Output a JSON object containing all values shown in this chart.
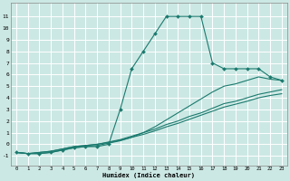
{
  "xlabel": "Humidex (Indice chaleur)",
  "bg_color": "#cce8e4",
  "grid_color": "#ffffff",
  "line_color": "#1a7a6e",
  "xlim": [
    -0.5,
    23.5
  ],
  "ylim": [
    -1.8,
    12.2
  ],
  "xticks": [
    0,
    1,
    2,
    3,
    4,
    5,
    6,
    7,
    8,
    9,
    10,
    11,
    12,
    13,
    14,
    15,
    16,
    17,
    18,
    19,
    20,
    21,
    22,
    23
  ],
  "yticks": [
    -1,
    0,
    1,
    2,
    3,
    4,
    5,
    6,
    7,
    8,
    9,
    10,
    11
  ],
  "line_main_x": [
    0,
    1,
    2,
    3,
    4,
    5,
    6,
    7,
    8,
    9,
    10,
    11,
    12,
    13,
    14,
    15,
    16,
    17,
    18,
    19,
    20,
    21,
    22,
    23
  ],
  "line_main_y": [
    -0.7,
    -0.8,
    -0.8,
    -0.7,
    -0.5,
    -0.3,
    -0.2,
    -0.2,
    0.0,
    3.0,
    6.5,
    8.0,
    9.5,
    11.0,
    11.0,
    11.0,
    11.0,
    7.0,
    6.5,
    6.5,
    6.5,
    6.5,
    5.8,
    5.5
  ],
  "line2_x": [
    0,
    1,
    2,
    3,
    4,
    5,
    6,
    7,
    8,
    9,
    10,
    11,
    12,
    13,
    14,
    15,
    16,
    17,
    18,
    19,
    20,
    21,
    22,
    23
  ],
  "line2_y": [
    -0.7,
    -0.8,
    -0.8,
    -0.7,
    -0.5,
    -0.3,
    -0.2,
    -0.1,
    0.1,
    0.3,
    0.6,
    1.0,
    1.5,
    2.1,
    2.7,
    3.3,
    3.9,
    4.5,
    5.0,
    5.2,
    5.5,
    5.8,
    5.6,
    5.5
  ],
  "line3_x": [
    0,
    1,
    2,
    3,
    4,
    5,
    6,
    7,
    8,
    9,
    10,
    11,
    12,
    13,
    14,
    15,
    16,
    17,
    18,
    19,
    20,
    21,
    22,
    23
  ],
  "line3_y": [
    -0.7,
    -0.8,
    -0.7,
    -0.6,
    -0.4,
    -0.2,
    -0.1,
    0.0,
    0.2,
    0.4,
    0.7,
    1.0,
    1.3,
    1.7,
    2.0,
    2.4,
    2.7,
    3.1,
    3.5,
    3.7,
    4.0,
    4.3,
    4.5,
    4.7
  ],
  "line4_x": [
    0,
    1,
    2,
    3,
    4,
    5,
    6,
    7,
    8,
    9,
    10,
    11,
    12,
    13,
    14,
    15,
    16,
    17,
    18,
    19,
    20,
    21,
    22,
    23
  ],
  "line4_y": [
    -0.7,
    -0.8,
    -0.7,
    -0.6,
    -0.4,
    -0.2,
    -0.1,
    0.0,
    0.15,
    0.35,
    0.6,
    0.85,
    1.15,
    1.5,
    1.8,
    2.15,
    2.5,
    2.85,
    3.2,
    3.45,
    3.7,
    4.0,
    4.2,
    4.35
  ]
}
